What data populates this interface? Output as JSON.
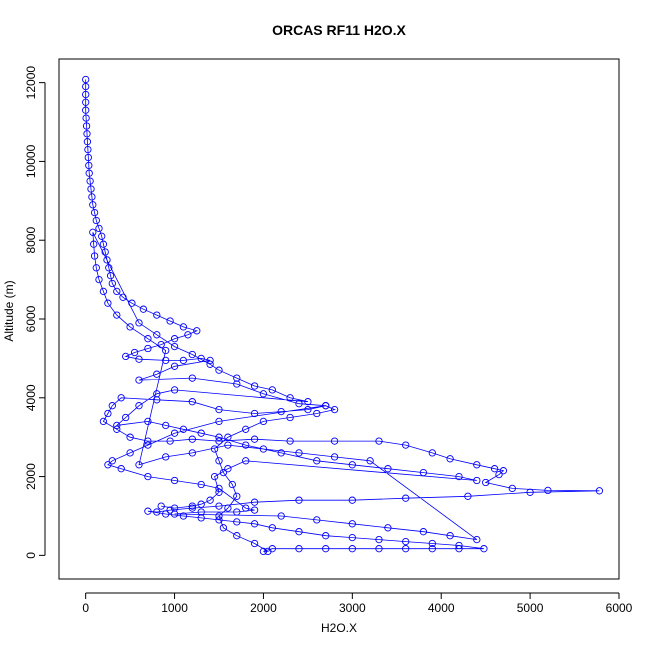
{
  "chart_data": {
    "type": "scatter",
    "title": "ORCAS RF11 H2O.X",
    "xlabel": "H2O.X",
    "ylabel": "Altitude (m)",
    "xlim": [
      -300,
      6000
    ],
    "ylim": [
      -600,
      12600
    ],
    "x_ticks": [
      0,
      1000,
      2000,
      3000,
      4000,
      5000,
      6000
    ],
    "y_ticks": [
      0,
      2000,
      4000,
      6000,
      8000,
      10000,
      12000
    ],
    "grid": false,
    "legend": "none",
    "marker": "open-circle",
    "connected": true,
    "color": "#0000ff",
    "series": [
      {
        "values": [
          [
            0,
            12080
          ],
          [
            0,
            11900
          ],
          [
            0,
            11700
          ],
          [
            0,
            11500
          ],
          [
            0,
            11300
          ],
          [
            5,
            11100
          ],
          [
            10,
            10900
          ],
          [
            15,
            10700
          ],
          [
            20,
            10500
          ],
          [
            25,
            10300
          ],
          [
            30,
            10100
          ],
          [
            35,
            9900
          ],
          [
            40,
            9700
          ],
          [
            50,
            9500
          ],
          [
            60,
            9300
          ],
          [
            70,
            9100
          ],
          [
            80,
            8900
          ],
          [
            100,
            8700
          ],
          [
            120,
            8500
          ],
          [
            150,
            8300
          ],
          [
            180,
            8100
          ],
          [
            200,
            7900
          ],
          [
            220,
            7700
          ],
          [
            240,
            7500
          ],
          [
            260,
            7300
          ],
          [
            280,
            7100
          ],
          [
            300,
            6900
          ],
          [
            350,
            6700
          ],
          [
            420,
            6550
          ],
          [
            520,
            6400
          ],
          [
            650,
            6250
          ],
          [
            800,
            6100
          ],
          [
            950,
            5950
          ],
          [
            1100,
            5800
          ],
          [
            1250,
            5700
          ],
          [
            1150,
            5600
          ],
          [
            1000,
            5500
          ],
          [
            850,
            5350
          ],
          [
            700,
            5250
          ],
          [
            550,
            5150
          ],
          [
            450,
            5050
          ],
          [
            600,
            4980
          ],
          [
            900,
            4950
          ],
          [
            1100,
            4950
          ],
          [
            1300,
            5000
          ],
          [
            1400,
            4950
          ],
          [
            1000,
            4800
          ],
          [
            800,
            4600
          ],
          [
            600,
            4450
          ],
          [
            1200,
            4500
          ],
          [
            1700,
            4350
          ],
          [
            2000,
            4100
          ],
          [
            2400,
            3850
          ],
          [
            2700,
            3800
          ],
          [
            2500,
            3700
          ],
          [
            2200,
            3650
          ],
          [
            1900,
            3600
          ],
          [
            1500,
            3700
          ],
          [
            1200,
            3900
          ],
          [
            800,
            3950
          ],
          [
            400,
            4000
          ],
          [
            300,
            3800
          ],
          [
            250,
            3600
          ],
          [
            200,
            3400
          ],
          [
            350,
            3200
          ],
          [
            500,
            3000
          ],
          [
            700,
            2900
          ],
          [
            950,
            2900
          ],
          [
            1200,
            2950
          ],
          [
            1500,
            2900
          ],
          [
            1900,
            2950
          ],
          [
            2300,
            2900
          ],
          [
            2800,
            2900
          ],
          [
            3300,
            2900
          ],
          [
            3600,
            2800
          ],
          [
            3900,
            2600
          ],
          [
            4100,
            2450
          ],
          [
            4400,
            2300
          ],
          [
            4600,
            2200
          ],
          [
            4700,
            2150
          ],
          [
            4650,
            2050
          ],
          [
            4500,
            1850
          ],
          [
            4800,
            1700
          ],
          [
            5200,
            1650
          ],
          [
            5780,
            1640
          ],
          [
            5000,
            1600
          ],
          [
            4300,
            1500
          ],
          [
            3600,
            1450
          ],
          [
            3000,
            1400
          ],
          [
            2400,
            1400
          ],
          [
            1900,
            1350
          ],
          [
            1500,
            1250
          ],
          [
            1200,
            1200
          ],
          [
            950,
            1150
          ],
          [
            800,
            1100
          ],
          [
            700,
            1120
          ],
          [
            900,
            1050
          ],
          [
            1100,
            1000
          ],
          [
            1300,
            950
          ],
          [
            1500,
            900
          ],
          [
            1700,
            850
          ],
          [
            1900,
            800
          ],
          [
            2100,
            700
          ],
          [
            2400,
            600
          ],
          [
            2700,
            500
          ],
          [
            3000,
            450
          ],
          [
            3300,
            400
          ],
          [
            3600,
            350
          ],
          [
            3900,
            300
          ],
          [
            4200,
            250
          ],
          [
            4480,
            170
          ],
          [
            4200,
            170
          ],
          [
            3900,
            170
          ],
          [
            3600,
            170
          ],
          [
            3300,
            170
          ],
          [
            3000,
            170
          ],
          [
            2700,
            170
          ],
          [
            2400,
            170
          ],
          [
            2100,
            170
          ],
          [
            2000,
            100
          ],
          [
            2050,
            100
          ],
          [
            1900,
            300
          ],
          [
            1700,
            500
          ],
          [
            1550,
            700
          ],
          [
            1500,
            1000
          ],
          [
            1600,
            1200
          ],
          [
            1700,
            1500
          ],
          [
            1650,
            1800
          ],
          [
            1550,
            2100
          ],
          [
            1500,
            2400
          ],
          [
            1450,
            2700
          ],
          [
            1600,
            3000
          ],
          [
            1800,
            3200
          ],
          [
            2000,
            3400
          ],
          [
            2300,
            3500
          ],
          [
            2600,
            3600
          ],
          [
            2800,
            3700
          ],
          [
            2700,
            3800
          ],
          [
            1500,
            3400
          ],
          [
            1000,
            3100
          ],
          [
            700,
            2800
          ],
          [
            500,
            2600
          ],
          [
            300,
            2400
          ],
          [
            250,
            2300
          ],
          [
            400,
            2200
          ],
          [
            700,
            2000
          ],
          [
            1000,
            1900
          ],
          [
            1300,
            1800
          ],
          [
            1500,
            1700
          ],
          [
            1800,
            1200
          ],
          [
            1900,
            1150
          ],
          [
            1700,
            1100
          ],
          [
            1300,
            1100
          ],
          [
            1000,
            1050
          ],
          [
            2200,
            1000
          ],
          [
            2600,
            900
          ],
          [
            3000,
            800
          ],
          [
            3400,
            700
          ],
          [
            3800,
            600
          ],
          [
            4100,
            500
          ],
          [
            4400,
            400
          ],
          [
            3200,
            2400
          ],
          [
            2800,
            2500
          ],
          [
            2400,
            2600
          ],
          [
            2000,
            2700
          ],
          [
            1600,
            2800
          ],
          [
            1200,
            2600
          ],
          [
            900,
            2500
          ],
          [
            600,
            2300
          ],
          [
            900,
            5200
          ],
          [
            700,
            5500
          ],
          [
            500,
            5800
          ],
          [
            350,
            6100
          ],
          [
            250,
            6400
          ],
          [
            200,
            6700
          ],
          [
            150,
            7000
          ],
          [
            120,
            7300
          ],
          [
            100,
            7600
          ],
          [
            90,
            7900
          ],
          [
            80,
            8200
          ],
          [
            600,
            5900
          ],
          [
            800,
            5600
          ],
          [
            1000,
            5300
          ],
          [
            1200,
            5100
          ],
          [
            1400,
            4850
          ],
          [
            1500,
            4700
          ],
          [
            1700,
            4500
          ],
          [
            1900,
            4300
          ],
          [
            2100,
            4200
          ],
          [
            2300,
            4000
          ],
          [
            2500,
            3900
          ],
          [
            1000,
            4200
          ],
          [
            800,
            4100
          ],
          [
            600,
            3800
          ],
          [
            450,
            3500
          ],
          [
            350,
            3300
          ],
          [
            700,
            3400
          ],
          [
            900,
            3300
          ],
          [
            1100,
            3200
          ],
          [
            1300,
            3100
          ],
          [
            1500,
            3000
          ],
          [
            1800,
            2800
          ],
          [
            2200,
            2600
          ],
          [
            2600,
            2400
          ],
          [
            3000,
            2300
          ],
          [
            3400,
            2200
          ],
          [
            3800,
            2100
          ],
          [
            4200,
            2000
          ],
          [
            4400,
            1900
          ],
          [
            1800,
            2400
          ],
          [
            1600,
            2200
          ],
          [
            1450,
            2000
          ],
          [
            1500,
            1600
          ],
          [
            1400,
            1400
          ],
          [
            1300,
            1300
          ],
          [
            1200,
            1250
          ],
          [
            1000,
            1200
          ],
          [
            850,
            1250
          ]
        ]
      }
    ]
  }
}
